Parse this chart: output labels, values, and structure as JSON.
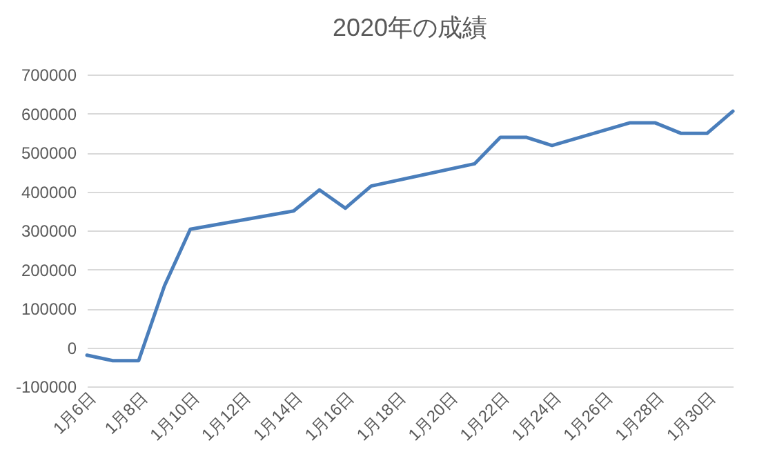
{
  "chart_data": {
    "type": "line",
    "title": "2020年の成績",
    "x": [
      "2020-01-06",
      "2020-01-07",
      "2020-01-08",
      "2020-01-09",
      "2020-01-10",
      "2020-01-14",
      "2020-01-15",
      "2020-01-16",
      "2020-01-17",
      "2020-01-21",
      "2020-01-22",
      "2020-01-23",
      "2020-01-24",
      "2020-01-27",
      "2020-01-28",
      "2020-01-29",
      "2020-01-30",
      "2020-01-31"
    ],
    "series": [
      {
        "color": "#4a7ebb",
        "values": [
          -20000,
          -34000,
          -34000,
          158000,
          303000,
          350000,
          404000,
          357000,
          414000,
          471000,
          539000,
          539000,
          518000,
          576000,
          576000,
          549000,
          549000,
          606000
        ]
      }
    ],
    "xlim": [
      "2020-01-06",
      "2020-01-31"
    ],
    "xticks": [
      {
        "value": "2020-01-06",
        "label": "1月6日"
      },
      {
        "value": "2020-01-08",
        "label": "1月8日"
      },
      {
        "value": "2020-01-10",
        "label": "1月10日"
      },
      {
        "value": "2020-01-12",
        "label": "1月12日"
      },
      {
        "value": "2020-01-14",
        "label": "1月14日"
      },
      {
        "value": "2020-01-16",
        "label": "1月16日"
      },
      {
        "value": "2020-01-18",
        "label": "1月18日"
      },
      {
        "value": "2020-01-20",
        "label": "1月20日"
      },
      {
        "value": "2020-01-22",
        "label": "1月22日"
      },
      {
        "value": "2020-01-24",
        "label": "1月24日"
      },
      {
        "value": "2020-01-26",
        "label": "1月26日"
      },
      {
        "value": "2020-01-28",
        "label": "1月28日"
      },
      {
        "value": "2020-01-30",
        "label": "1月30日"
      }
    ],
    "ylim": [
      -100000,
      700000
    ],
    "yticks": [
      -100000,
      0,
      100000,
      200000,
      300000,
      400000,
      500000,
      600000,
      700000
    ],
    "grid": "y",
    "legend": false,
    "marker": "none",
    "line_style": "solid"
  }
}
